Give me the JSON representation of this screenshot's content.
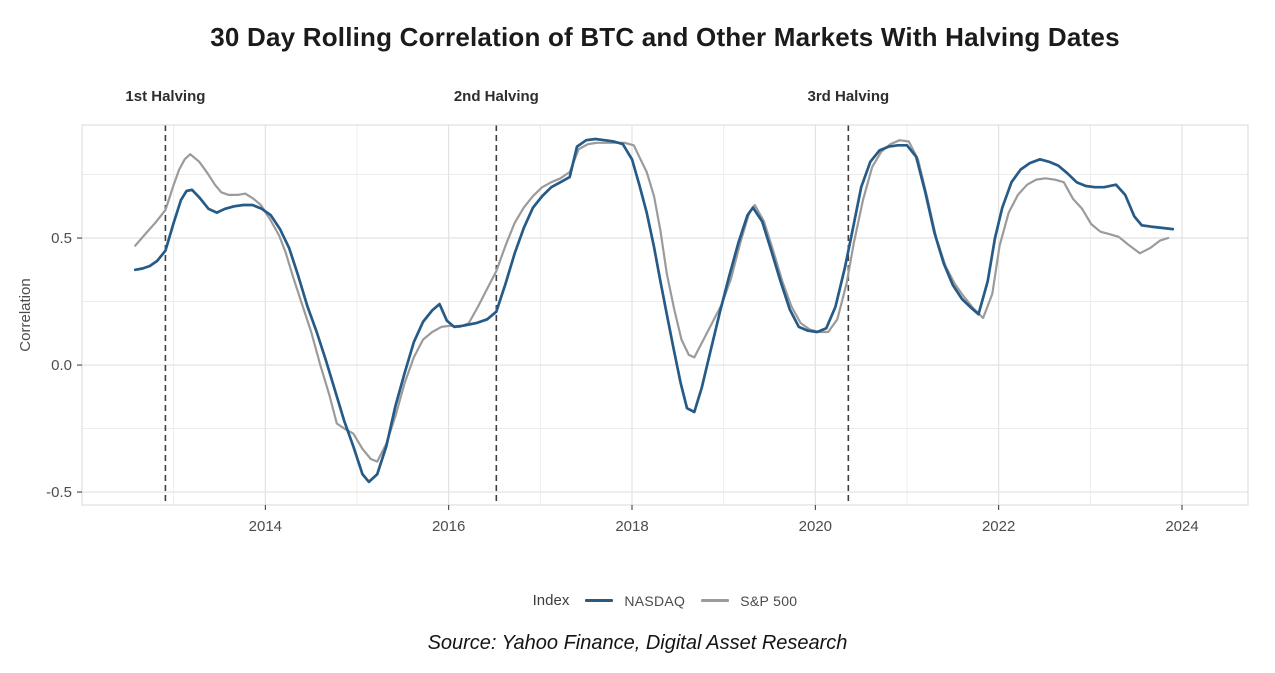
{
  "title": "30 Day Rolling Correlation of BTC and Other Markets With Halving Dates",
  "source": "Source: Yahoo Finance, Digital Asset Research",
  "legend": {
    "title": "Index",
    "items": [
      {
        "label": "NASDAQ",
        "color": "#265A87"
      },
      {
        "label": "S&P 500",
        "color": "#9B9B9B"
      }
    ]
  },
  "colors": {
    "nasdaq": "#265A87",
    "sp500": "#9B9B9B",
    "halving_line": "#3F3F3F",
    "grid_major": "#E2E2E2",
    "grid_minor": "#ECECEC",
    "panel_border": "#D8D8D8",
    "tick": "#333333",
    "tick_label": "#4D4D4D",
    "annotation": "#2E2E2E"
  },
  "chart_data": {
    "type": "line",
    "title": "30 Day Rolling Correlation of BTC and Other Markets With Halving Dates",
    "xlabel": "",
    "ylabel": "Correlation",
    "xlim": [
      2012.0,
      2024.72
    ],
    "ylim": [
      -0.551,
      0.945
    ],
    "grid": "on",
    "legend_position": "bottom",
    "x_ticks": [
      2014,
      2016,
      2018,
      2020,
      2022,
      2024
    ],
    "x_gridlines_major": [
      2014,
      2016,
      2018,
      2020,
      2022,
      2024
    ],
    "x_gridlines_minor": [
      2013,
      2015,
      2017,
      2019,
      2021,
      2023
    ],
    "y_ticks": [
      0.5,
      0.0,
      -0.5
    ],
    "y_tick_labels": [
      "0.5",
      "0.0",
      "-0.5"
    ],
    "y_gridlines_major": [
      0.5,
      0.0,
      -0.5
    ],
    "y_gridlines_minor": [
      0.75,
      0.25,
      -0.25
    ],
    "halvings": [
      {
        "label": "1st Halving",
        "year": 2012.91
      },
      {
        "label": "2nd Halving",
        "year": 2016.52
      },
      {
        "label": "3rd Halving",
        "year": 2020.36
      }
    ],
    "series": [
      {
        "name": "S&P 500",
        "color": "#9B9B9B",
        "width": 2.2,
        "points": [
          [
            2012.58,
            0.47
          ],
          [
            2012.7,
            0.52
          ],
          [
            2012.8,
            0.56
          ],
          [
            2012.91,
            0.61
          ],
          [
            2013.0,
            0.71
          ],
          [
            2013.06,
            0.77
          ],
          [
            2013.12,
            0.81
          ],
          [
            2013.18,
            0.83
          ],
          [
            2013.28,
            0.8
          ],
          [
            2013.37,
            0.755
          ],
          [
            2013.45,
            0.71
          ],
          [
            2013.52,
            0.68
          ],
          [
            2013.6,
            0.67
          ],
          [
            2013.7,
            0.67
          ],
          [
            2013.78,
            0.675
          ],
          [
            2013.87,
            0.655
          ],
          [
            2013.95,
            0.63
          ],
          [
            2014.05,
            0.575
          ],
          [
            2014.15,
            0.51
          ],
          [
            2014.22,
            0.445
          ],
          [
            2014.3,
            0.35
          ],
          [
            2014.4,
            0.24
          ],
          [
            2014.5,
            0.13
          ],
          [
            2014.6,
            0.0
          ],
          [
            2014.7,
            -0.12
          ],
          [
            2014.78,
            -0.23
          ],
          [
            2014.86,
            -0.25
          ],
          [
            2014.96,
            -0.27
          ],
          [
            2015.06,
            -0.33
          ],
          [
            2015.15,
            -0.37
          ],
          [
            2015.22,
            -0.38
          ],
          [
            2015.32,
            -0.31
          ],
          [
            2015.42,
            -0.2
          ],
          [
            2015.52,
            -0.07
          ],
          [
            2015.62,
            0.03
          ],
          [
            2015.72,
            0.1
          ],
          [
            2015.82,
            0.13
          ],
          [
            2015.92,
            0.15
          ],
          [
            2016.02,
            0.155
          ],
          [
            2016.12,
            0.15
          ],
          [
            2016.22,
            0.165
          ],
          [
            2016.32,
            0.23
          ],
          [
            2016.42,
            0.3
          ],
          [
            2016.52,
            0.37
          ],
          [
            2016.62,
            0.47
          ],
          [
            2016.72,
            0.56
          ],
          [
            2016.82,
            0.62
          ],
          [
            2016.92,
            0.665
          ],
          [
            2017.02,
            0.7
          ],
          [
            2017.12,
            0.72
          ],
          [
            2017.22,
            0.735
          ],
          [
            2017.32,
            0.76
          ],
          [
            2017.42,
            0.85
          ],
          [
            2017.52,
            0.87
          ],
          [
            2017.62,
            0.875
          ],
          [
            2017.72,
            0.875
          ],
          [
            2017.82,
            0.875
          ],
          [
            2017.92,
            0.875
          ],
          [
            2018.02,
            0.865
          ],
          [
            2018.08,
            0.82
          ],
          [
            2018.16,
            0.76
          ],
          [
            2018.24,
            0.665
          ],
          [
            2018.31,
            0.53
          ],
          [
            2018.38,
            0.36
          ],
          [
            2018.46,
            0.22
          ],
          [
            2018.54,
            0.1
          ],
          [
            2018.62,
            0.04
          ],
          [
            2018.68,
            0.03
          ],
          [
            2018.78,
            0.1
          ],
          [
            2018.88,
            0.17
          ],
          [
            2018.98,
            0.24
          ],
          [
            2019.08,
            0.34
          ],
          [
            2019.18,
            0.48
          ],
          [
            2019.28,
            0.6
          ],
          [
            2019.34,
            0.63
          ],
          [
            2019.44,
            0.565
          ],
          [
            2019.54,
            0.45
          ],
          [
            2019.64,
            0.33
          ],
          [
            2019.74,
            0.23
          ],
          [
            2019.84,
            0.165
          ],
          [
            2019.94,
            0.14
          ],
          [
            2020.04,
            0.13
          ],
          [
            2020.14,
            0.13
          ],
          [
            2020.24,
            0.18
          ],
          [
            2020.34,
            0.32
          ],
          [
            2020.42,
            0.48
          ],
          [
            2020.52,
            0.65
          ],
          [
            2020.62,
            0.78
          ],
          [
            2020.72,
            0.84
          ],
          [
            2020.82,
            0.87
          ],
          [
            2020.92,
            0.885
          ],
          [
            2021.02,
            0.88
          ],
          [
            2021.12,
            0.81
          ],
          [
            2021.22,
            0.66
          ],
          [
            2021.32,
            0.5
          ],
          [
            2021.42,
            0.39
          ],
          [
            2021.52,
            0.32
          ],
          [
            2021.62,
            0.27
          ],
          [
            2021.72,
            0.225
          ],
          [
            2021.83,
            0.185
          ],
          [
            2021.93,
            0.28
          ],
          [
            2022.01,
            0.47
          ],
          [
            2022.11,
            0.6
          ],
          [
            2022.21,
            0.67
          ],
          [
            2022.31,
            0.71
          ],
          [
            2022.41,
            0.73
          ],
          [
            2022.51,
            0.735
          ],
          [
            2022.61,
            0.73
          ],
          [
            2022.71,
            0.72
          ],
          [
            2022.81,
            0.655
          ],
          [
            2022.91,
            0.615
          ],
          [
            2023.01,
            0.555
          ],
          [
            2023.11,
            0.525
          ],
          [
            2023.21,
            0.515
          ],
          [
            2023.31,
            0.505
          ],
          [
            2023.41,
            0.475
          ],
          [
            2023.54,
            0.44
          ],
          [
            2023.65,
            0.46
          ],
          [
            2023.76,
            0.49
          ],
          [
            2023.85,
            0.5
          ]
        ]
      },
      {
        "name": "NASDAQ",
        "color": "#265A87",
        "width": 2.7,
        "points": [
          [
            2012.58,
            0.375
          ],
          [
            2012.66,
            0.38
          ],
          [
            2012.74,
            0.39
          ],
          [
            2012.82,
            0.41
          ],
          [
            2012.91,
            0.45
          ],
          [
            2013.0,
            0.56
          ],
          [
            2013.08,
            0.65
          ],
          [
            2013.14,
            0.685
          ],
          [
            2013.2,
            0.69
          ],
          [
            2013.28,
            0.66
          ],
          [
            2013.38,
            0.615
          ],
          [
            2013.47,
            0.6
          ],
          [
            2013.56,
            0.615
          ],
          [
            2013.66,
            0.625
          ],
          [
            2013.76,
            0.63
          ],
          [
            2013.86,
            0.63
          ],
          [
            2013.96,
            0.615
          ],
          [
            2014.06,
            0.59
          ],
          [
            2014.16,
            0.535
          ],
          [
            2014.26,
            0.46
          ],
          [
            2014.36,
            0.35
          ],
          [
            2014.46,
            0.23
          ],
          [
            2014.56,
            0.13
          ],
          [
            2014.66,
            0.02
          ],
          [
            2014.76,
            -0.1
          ],
          [
            2014.86,
            -0.22
          ],
          [
            2014.96,
            -0.32
          ],
          [
            2015.06,
            -0.43
          ],
          [
            2015.13,
            -0.46
          ],
          [
            2015.22,
            -0.43
          ],
          [
            2015.32,
            -0.32
          ],
          [
            2015.42,
            -0.16
          ],
          [
            2015.52,
            -0.03
          ],
          [
            2015.62,
            0.09
          ],
          [
            2015.72,
            0.17
          ],
          [
            2015.82,
            0.215
          ],
          [
            2015.9,
            0.24
          ],
          [
            2015.98,
            0.175
          ],
          [
            2016.06,
            0.15
          ],
          [
            2016.16,
            0.155
          ],
          [
            2016.3,
            0.165
          ],
          [
            2016.42,
            0.18
          ],
          [
            2016.52,
            0.21
          ],
          [
            2016.62,
            0.32
          ],
          [
            2016.72,
            0.44
          ],
          [
            2016.82,
            0.54
          ],
          [
            2016.92,
            0.62
          ],
          [
            2017.02,
            0.665
          ],
          [
            2017.12,
            0.7
          ],
          [
            2017.22,
            0.72
          ],
          [
            2017.32,
            0.74
          ],
          [
            2017.4,
            0.86
          ],
          [
            2017.5,
            0.885
          ],
          [
            2017.6,
            0.89
          ],
          [
            2017.7,
            0.885
          ],
          [
            2017.8,
            0.88
          ],
          [
            2017.9,
            0.87
          ],
          [
            2018.0,
            0.81
          ],
          [
            2018.08,
            0.71
          ],
          [
            2018.16,
            0.6
          ],
          [
            2018.24,
            0.465
          ],
          [
            2018.31,
            0.33
          ],
          [
            2018.38,
            0.2
          ],
          [
            2018.45,
            0.07
          ],
          [
            2018.53,
            -0.07
          ],
          [
            2018.6,
            -0.17
          ],
          [
            2018.68,
            -0.185
          ],
          [
            2018.76,
            -0.09
          ],
          [
            2018.86,
            0.06
          ],
          [
            2018.96,
            0.21
          ],
          [
            2019.06,
            0.35
          ],
          [
            2019.16,
            0.48
          ],
          [
            2019.26,
            0.59
          ],
          [
            2019.32,
            0.62
          ],
          [
            2019.42,
            0.565
          ],
          [
            2019.52,
            0.45
          ],
          [
            2019.62,
            0.33
          ],
          [
            2019.72,
            0.22
          ],
          [
            2019.82,
            0.15
          ],
          [
            2019.92,
            0.135
          ],
          [
            2020.02,
            0.13
          ],
          [
            2020.12,
            0.145
          ],
          [
            2020.22,
            0.23
          ],
          [
            2020.32,
            0.38
          ],
          [
            2020.4,
            0.52
          ],
          [
            2020.5,
            0.7
          ],
          [
            2020.6,
            0.8
          ],
          [
            2020.7,
            0.845
          ],
          [
            2020.8,
            0.86
          ],
          [
            2020.9,
            0.865
          ],
          [
            2021.0,
            0.865
          ],
          [
            2021.1,
            0.82
          ],
          [
            2021.2,
            0.68
          ],
          [
            2021.3,
            0.52
          ],
          [
            2021.4,
            0.4
          ],
          [
            2021.5,
            0.315
          ],
          [
            2021.6,
            0.26
          ],
          [
            2021.7,
            0.225
          ],
          [
            2021.78,
            0.2
          ],
          [
            2021.88,
            0.33
          ],
          [
            2021.96,
            0.5
          ],
          [
            2022.04,
            0.62
          ],
          [
            2022.14,
            0.72
          ],
          [
            2022.24,
            0.77
          ],
          [
            2022.34,
            0.795
          ],
          [
            2022.45,
            0.81
          ],
          [
            2022.55,
            0.8
          ],
          [
            2022.65,
            0.785
          ],
          [
            2022.75,
            0.755
          ],
          [
            2022.85,
            0.72
          ],
          [
            2022.95,
            0.705
          ],
          [
            2023.05,
            0.7
          ],
          [
            2023.15,
            0.7
          ],
          [
            2023.28,
            0.71
          ],
          [
            2023.38,
            0.67
          ],
          [
            2023.48,
            0.585
          ],
          [
            2023.56,
            0.55
          ],
          [
            2023.66,
            0.545
          ],
          [
            2023.78,
            0.54
          ],
          [
            2023.9,
            0.535
          ]
        ]
      }
    ]
  }
}
